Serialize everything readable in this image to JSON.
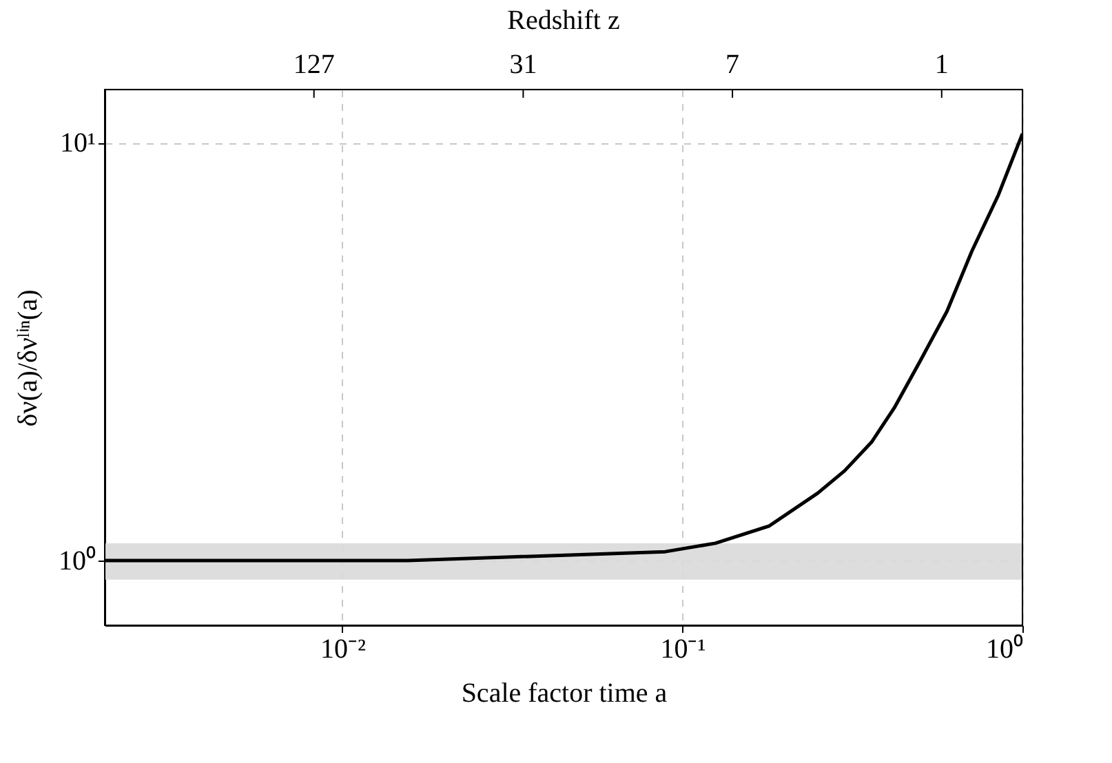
{
  "chart_data": {
    "type": "line",
    "xlabel": "Scale factor time a",
    "ylabel": "δν(a)/δνˡⁱⁿ(a)",
    "x2label": "Redshift z",
    "x": [
      0.002,
      0.0156,
      0.089,
      0.125,
      0.18,
      0.25,
      0.3,
      0.36,
      0.42,
      0.5,
      0.6,
      0.71,
      0.85,
      1.0
    ],
    "series": [
      {
        "color": "#000000",
        "values": [
          1.0,
          1.0,
          1.05,
          1.1,
          1.21,
          1.45,
          1.64,
          1.92,
          2.32,
          3.0,
          3.95,
          5.5,
          7.5,
          10.5
        ]
      }
    ],
    "log": "xy",
    "xlim": [
      0.002,
      1
    ],
    "xticks": [
      {
        "value": 0.01,
        "label": "10⁻²"
      },
      {
        "value": 0.1,
        "label": "10⁻¹"
      },
      {
        "value": 1,
        "label": "10⁰"
      }
    ],
    "ylim": [
      0.7,
      13.4
    ],
    "yticks": [
      {
        "value": 1,
        "label": "10⁰"
      },
      {
        "value": 10,
        "label": "10¹"
      }
    ],
    "annotations": [
      "127",
      "31",
      "7",
      "1"
    ],
    "bands": [
      {
        "axis": "y",
        "from": 0.9,
        "to": 1.1,
        "color": "#d9d9d9"
      }
    ],
    "grid": true,
    "line_style": "solid",
    "marker": "none"
  }
}
